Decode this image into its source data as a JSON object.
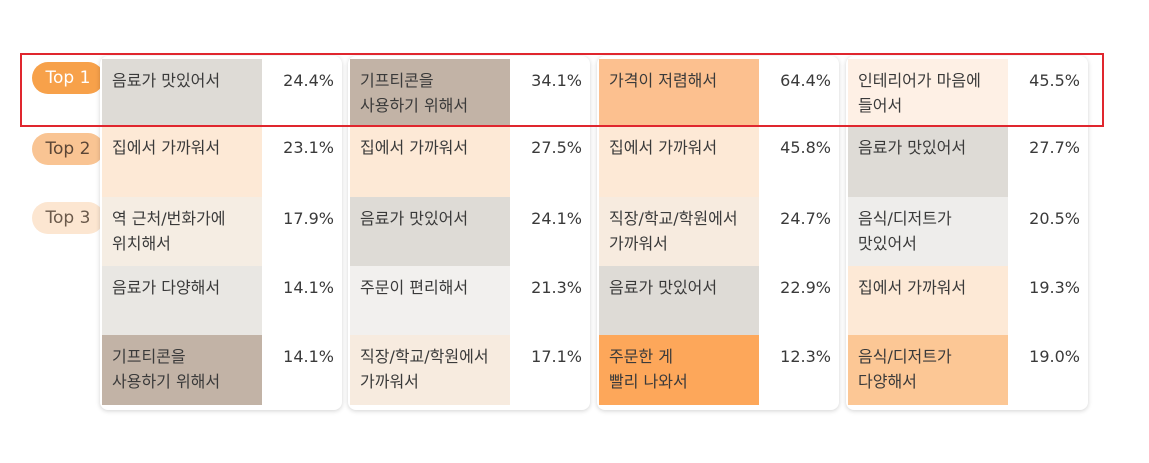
{
  "chart_data": {
    "type": "table",
    "title": "",
    "ranks": [
      "Top 1",
      "Top 2",
      "Top 3"
    ],
    "columns": [
      {
        "items": [
          {
            "label": "음료가 맛있어서",
            "value": "24.4%",
            "color": "#dedbd6"
          },
          {
            "label": "집에서 가까워서",
            "value": "23.1%",
            "color": "#fde9d6"
          },
          {
            "label": "역 근처/번화가에\n위치해서",
            "value": "17.9%",
            "color": "#f5ede3"
          },
          {
            "label": "음료가 다양해서",
            "value": "14.1%",
            "color": "#e9e7e3"
          },
          {
            "label": "기프티콘을\n사용하기 위해서",
            "value": "14.1%",
            "color": "#c2b3a6"
          }
        ]
      },
      {
        "items": [
          {
            "label": "기프티콘을\n사용하기 위해서",
            "value": "34.1%",
            "color": "#c2b3a6"
          },
          {
            "label": "집에서 가까워서",
            "value": "27.5%",
            "color": "#fde9d6"
          },
          {
            "label": "음료가 맛있어서",
            "value": "24.1%",
            "color": "#dedbd6"
          },
          {
            "label": "주문이 편리해서",
            "value": "21.3%",
            "color": "#f2f0ee"
          },
          {
            "label": "직장/학교/학원에서\n가까워서",
            "value": "17.1%",
            "color": "#f7ebdf"
          }
        ]
      },
      {
        "items": [
          {
            "label": "가격이 저렴해서",
            "value": "64.4%",
            "color": "#fcc08f"
          },
          {
            "label": "집에서 가까워서",
            "value": "45.8%",
            "color": "#fde9d6"
          },
          {
            "label": "직장/학교/학원에서\n가까워서",
            "value": "24.7%",
            "color": "#f7ebdf"
          },
          {
            "label": "음료가 맛있어서",
            "value": "22.9%",
            "color": "#dedbd6"
          },
          {
            "label": "주문한 게\n빨리 나와서",
            "value": "12.3%",
            "color": "#fda75a"
          }
        ]
      },
      {
        "items": [
          {
            "label": "인테리어가 마음에\n들어서",
            "value": "45.5%",
            "color": "#fef0e5"
          },
          {
            "label": "음료가 맛있어서",
            "value": "27.7%",
            "color": "#dedbd6"
          },
          {
            "label": "음식/디저트가\n맛있어서",
            "value": "20.5%",
            "color": "#eeedeb"
          },
          {
            "label": "집에서 가까워서",
            "value": "19.3%",
            "color": "#fde9d6"
          },
          {
            "label": "음식/디저트가\n다양해서",
            "value": "19.0%",
            "color": "#fcc795"
          }
        ]
      }
    ],
    "highlight_color": "#e0262e"
  }
}
